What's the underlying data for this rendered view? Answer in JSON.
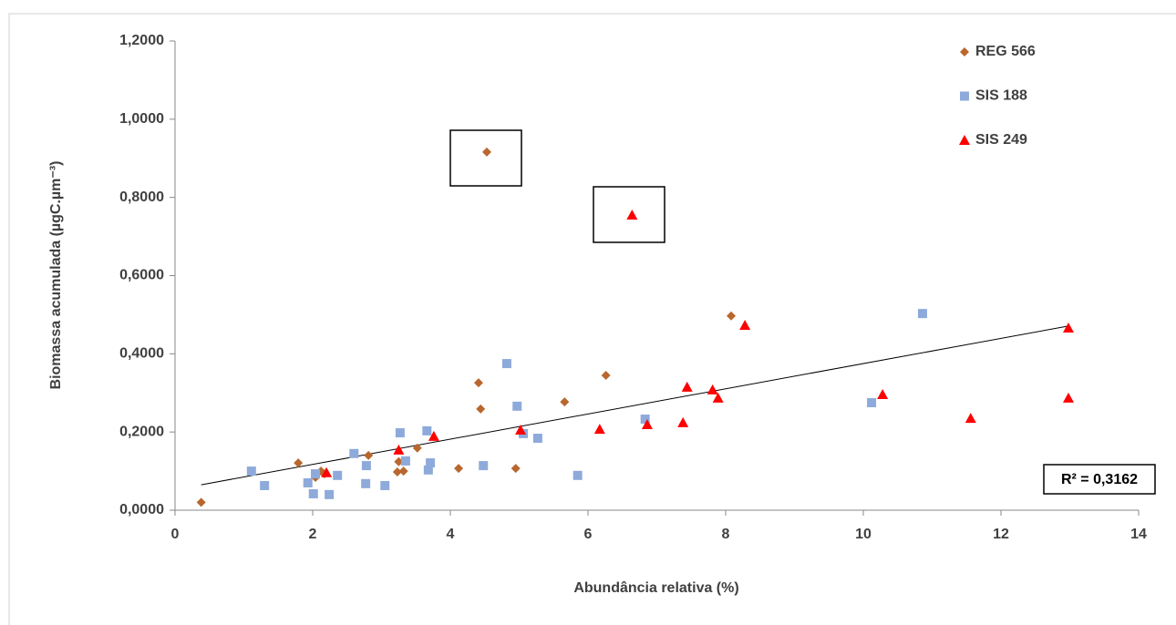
{
  "chart_data": {
    "type": "scatter",
    "xlabel": "Abundância relativa (%)",
    "ylabel": "Biomassa acumulada (µgC.µm⁻³)",
    "xlim": [
      0,
      14
    ],
    "xticks": [
      0,
      2,
      4,
      6,
      8,
      10,
      12,
      14
    ],
    "ylim": [
      0,
      1.2
    ],
    "yticks": [
      {
        "value": 0,
        "label": "0,0000"
      },
      {
        "value": 0.2,
        "label": "0,2000"
      },
      {
        "value": 0.4,
        "label": "0,4000"
      },
      {
        "value": 0.6,
        "label": "0,6000"
      },
      {
        "value": 0.8,
        "label": "0,8000"
      },
      {
        "value": 1.0,
        "label": "1,0000"
      },
      {
        "value": 1.2,
        "label": "1,2000"
      }
    ],
    "legend": "top-right",
    "series": [
      {
        "name": "REG 566",
        "color": "#b8672e",
        "marker": "diamond",
        "x": [
          0.38,
          1.79,
          2.04,
          2.12,
          2.17,
          2.81,
          3.23,
          3.25,
          3.32,
          3.52,
          4.12,
          4.41,
          4.44,
          4.53,
          4.95,
          5.66,
          6.26,
          8.08
        ],
        "values": [
          0.02,
          0.121,
          0.084,
          0.1,
          0.093,
          0.14,
          0.098,
          0.124,
          0.1,
          0.159,
          0.107,
          0.326,
          0.259,
          0.916,
          0.107,
          0.277,
          0.345,
          0.497
        ]
      },
      {
        "name": "SIS 188",
        "color": "#8eaadb",
        "marker": "square",
        "x": [
          1.11,
          1.3,
          1.93,
          2.01,
          2.04,
          2.24,
          2.36,
          2.6,
          2.78,
          2.77,
          3.05,
          3.27,
          3.35,
          3.66,
          3.68,
          3.71,
          4.48,
          4.82,
          4.97,
          5.06,
          5.27,
          5.85,
          6.83,
          10.12,
          10.86
        ],
        "values": [
          0.1,
          0.063,
          0.07,
          0.042,
          0.093,
          0.04,
          0.089,
          0.145,
          0.114,
          0.068,
          0.063,
          0.198,
          0.126,
          0.203,
          0.103,
          0.121,
          0.114,
          0.375,
          0.266,
          0.196,
          0.184,
          0.089,
          0.233,
          0.275,
          0.503
        ]
      },
      {
        "name": "SIS 249",
        "color": "#ff0000",
        "marker": "triangle",
        "x": [
          2.2,
          3.25,
          3.76,
          5.02,
          6.17,
          6.64,
          6.86,
          7.38,
          7.44,
          7.81,
          7.89,
          8.28,
          10.28,
          11.56,
          12.98,
          12.98
        ],
        "values": [
          0.096,
          0.154,
          0.189,
          0.205,
          0.207,
          0.755,
          0.219,
          0.224,
          0.315,
          0.308,
          0.287,
          0.473,
          0.296,
          0.235,
          0.287,
          0.466
        ]
      }
    ],
    "trendline": {
      "x": [
        0.38,
        12.98
      ],
      "values": [
        0.065,
        0.471
      ],
      "color": "#000000"
    },
    "annotation": "R² = 0,3162"
  }
}
